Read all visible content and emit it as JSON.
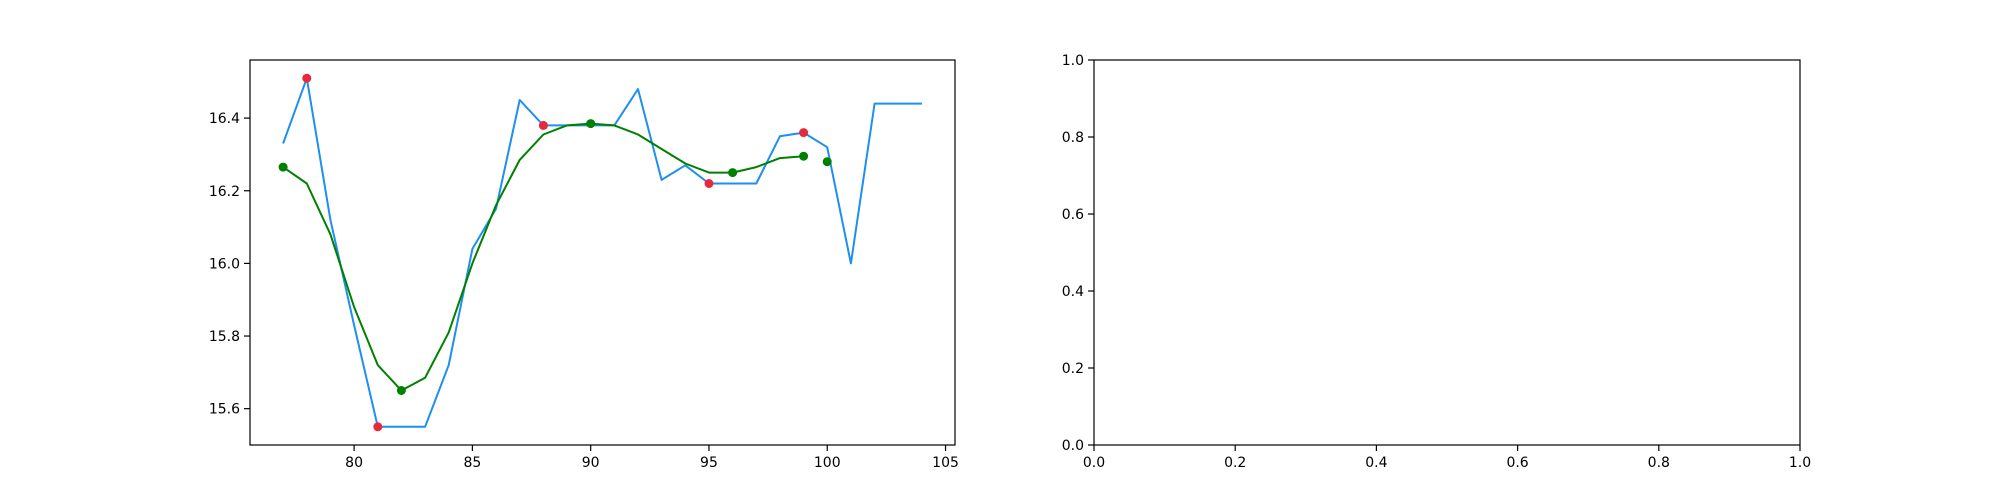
{
  "chart_data": [
    {
      "type": "line",
      "title": "",
      "xlabel": "",
      "ylabel": "",
      "xlim": [
        75.6,
        105.4
      ],
      "ylim": [
        15.5,
        16.56
      ],
      "xticks": [
        80,
        85,
        90,
        95,
        100,
        105
      ],
      "yticks": [
        15.6,
        15.8,
        16.0,
        16.2,
        16.4
      ],
      "grid": false,
      "series": [
        {
          "style": "line",
          "color": "#1f8ef1",
          "x": [
            77,
            78,
            79,
            80,
            81,
            82,
            83,
            84,
            85,
            86,
            87,
            88,
            89,
            90,
            91,
            92,
            93,
            94,
            95,
            96,
            97,
            98,
            99,
            100,
            101,
            102,
            103,
            104
          ],
          "y": [
            16.33,
            16.51,
            16.12,
            15.83,
            15.55,
            15.55,
            15.55,
            15.72,
            16.04,
            16.15,
            16.45,
            16.38,
            16.38,
            16.38,
            16.38,
            16.48,
            16.23,
            16.27,
            16.22,
            16.22,
            16.22,
            16.35,
            16.36,
            16.32,
            16.0,
            16.44,
            16.44,
            16.44
          ]
        },
        {
          "style": "line",
          "color": "#008000",
          "x": [
            77,
            78,
            79,
            80,
            81,
            82,
            83,
            84,
            85,
            86,
            87,
            88,
            89,
            90,
            91,
            92,
            93,
            94,
            95,
            96,
            97,
            98,
            99
          ],
          "y": [
            16.265,
            16.22,
            16.08,
            15.88,
            15.72,
            15.65,
            15.685,
            15.81,
            16.0,
            16.16,
            16.285,
            16.355,
            16.38,
            16.385,
            16.38,
            16.355,
            16.315,
            16.275,
            16.25,
            16.25,
            16.265,
            16.29,
            16.295
          ]
        },
        {
          "style": "scatter",
          "color": "#e8283c",
          "x": [
            78,
            81,
            88,
            95,
            99
          ],
          "y": [
            16.51,
            15.55,
            16.38,
            16.22,
            16.36
          ]
        },
        {
          "style": "scatter",
          "color": "#008000",
          "x": [
            77,
            82,
            90,
            96,
            99,
            100
          ],
          "y": [
            16.265,
            15.65,
            16.385,
            16.25,
            16.295,
            16.28
          ]
        }
      ]
    },
    {
      "type": "line",
      "title": "",
      "xlabel": "",
      "ylabel": "",
      "xlim": [
        0.0,
        1.0
      ],
      "ylim": [
        0.0,
        1.0
      ],
      "xticks": [
        "0.0",
        "0.2",
        "0.4",
        "0.6",
        "0.8",
        "1.0"
      ],
      "yticks": [
        "0.0",
        "0.2",
        "0.4",
        "0.6",
        "0.8",
        "1.0"
      ],
      "grid": false,
      "series": []
    }
  ]
}
